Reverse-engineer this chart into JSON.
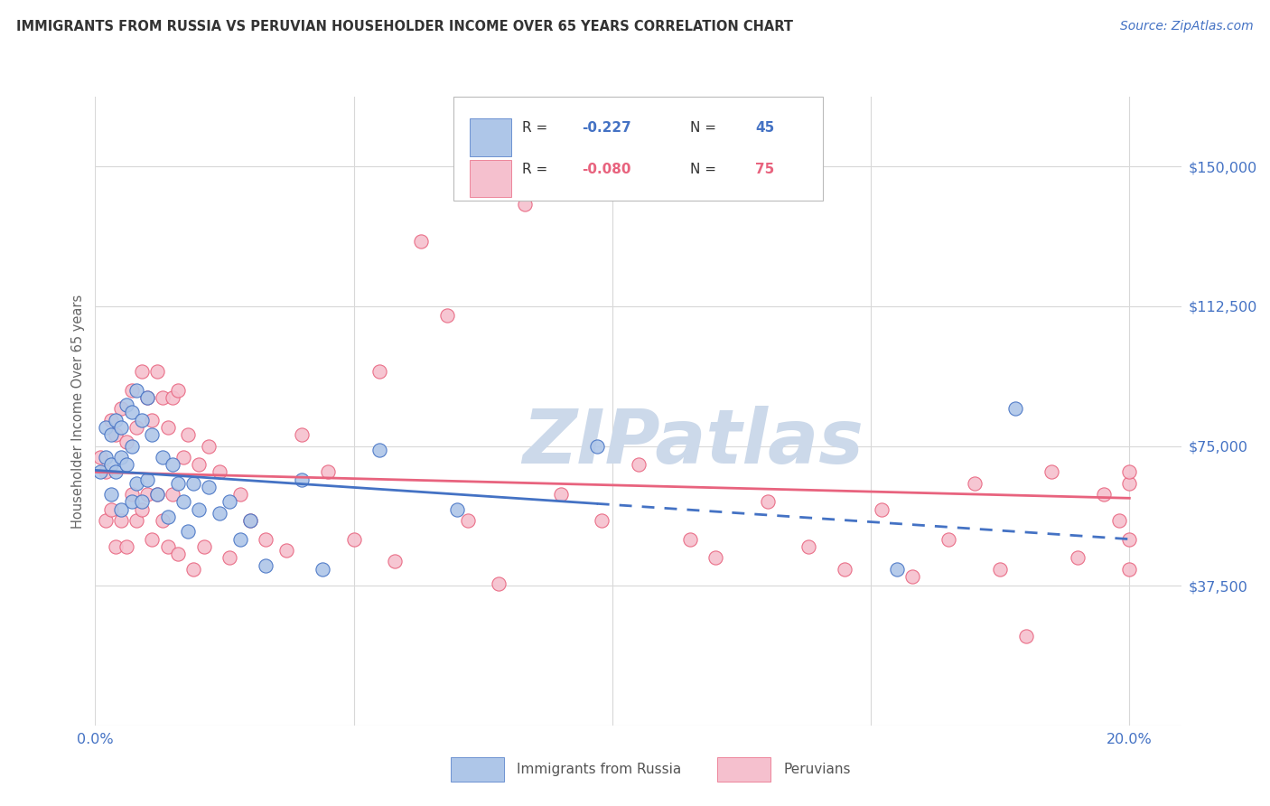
{
  "title": "IMMIGRANTS FROM RUSSIA VS PERUVIAN HOUSEHOLDER INCOME OVER 65 YEARS CORRELATION CHART",
  "source": "Source: ZipAtlas.com",
  "ylabel": "Householder Income Over 65 years",
  "xlim": [
    0.0,
    0.21
  ],
  "ylim": [
    0,
    168750
  ],
  "yticks": [
    0,
    37500,
    75000,
    112500,
    150000
  ],
  "ytick_labels": [
    "",
    "$37,500",
    "$75,000",
    "$112,500",
    "$150,000"
  ],
  "xticks": [
    0.0,
    0.05,
    0.1,
    0.15,
    0.2
  ],
  "xtick_labels": [
    "0.0%",
    "",
    "",
    "",
    "20.0%"
  ],
  "background_color": "#ffffff",
  "grid_color": "#d8d8d8",
  "title_color": "#333333",
  "source_color": "#4472c4",
  "axis_label_color": "#666666",
  "ytick_color": "#4472c4",
  "xtick_color": "#4472c4",
  "russia_color": "#aec6e8",
  "russia_edge_color": "#4472c4",
  "peru_color": "#f5c0ce",
  "peru_edge_color": "#e8637e",
  "russia_R": "-0.227",
  "russia_N": "45",
  "peru_R": "-0.080",
  "peru_N": "75",
  "legend_text_color": "#333333",
  "legend_val_color_russia": "#4472c4",
  "legend_val_color_peru": "#e8637e",
  "russia_trend_x0": 0.0,
  "russia_trend_x1": 0.2,
  "russia_trend_y0": 68500,
  "russia_trend_y1": 50000,
  "russia_trend_dash_x": 0.097,
  "peru_trend_x0": 0.0,
  "peru_trend_x1": 0.2,
  "peru_trend_y0": 68000,
  "peru_trend_y1": 61000,
  "russia_scatter_x": [
    0.001,
    0.002,
    0.002,
    0.003,
    0.003,
    0.003,
    0.004,
    0.004,
    0.005,
    0.005,
    0.005,
    0.006,
    0.006,
    0.007,
    0.007,
    0.007,
    0.008,
    0.008,
    0.009,
    0.009,
    0.01,
    0.01,
    0.011,
    0.012,
    0.013,
    0.014,
    0.015,
    0.016,
    0.017,
    0.018,
    0.019,
    0.02,
    0.022,
    0.024,
    0.026,
    0.028,
    0.03,
    0.033,
    0.04,
    0.044,
    0.055,
    0.07,
    0.097,
    0.155,
    0.178
  ],
  "russia_scatter_y": [
    68000,
    80000,
    72000,
    78000,
    70000,
    62000,
    82000,
    68000,
    80000,
    72000,
    58000,
    86000,
    70000,
    84000,
    75000,
    60000,
    90000,
    65000,
    82000,
    60000,
    88000,
    66000,
    78000,
    62000,
    72000,
    56000,
    70000,
    65000,
    60000,
    52000,
    65000,
    58000,
    64000,
    57000,
    60000,
    50000,
    55000,
    43000,
    66000,
    42000,
    74000,
    58000,
    75000,
    42000,
    85000
  ],
  "peru_scatter_x": [
    0.001,
    0.002,
    0.002,
    0.003,
    0.003,
    0.004,
    0.004,
    0.005,
    0.005,
    0.006,
    0.006,
    0.007,
    0.007,
    0.008,
    0.008,
    0.009,
    0.009,
    0.01,
    0.01,
    0.011,
    0.011,
    0.012,
    0.012,
    0.013,
    0.013,
    0.014,
    0.014,
    0.015,
    0.015,
    0.016,
    0.016,
    0.017,
    0.018,
    0.019,
    0.02,
    0.021,
    0.022,
    0.024,
    0.026,
    0.028,
    0.03,
    0.033,
    0.037,
    0.04,
    0.045,
    0.05,
    0.055,
    0.058,
    0.063,
    0.068,
    0.072,
    0.078,
    0.083,
    0.09,
    0.098,
    0.105,
    0.115,
    0.12,
    0.13,
    0.138,
    0.145,
    0.152,
    0.158,
    0.165,
    0.17,
    0.175,
    0.18,
    0.185,
    0.19,
    0.195,
    0.198,
    0.2,
    0.2,
    0.2,
    0.2
  ],
  "peru_scatter_y": [
    72000,
    68000,
    55000,
    82000,
    58000,
    78000,
    48000,
    85000,
    55000,
    76000,
    48000,
    90000,
    62000,
    80000,
    55000,
    95000,
    58000,
    88000,
    62000,
    82000,
    50000,
    95000,
    62000,
    88000,
    55000,
    80000,
    48000,
    88000,
    62000,
    90000,
    46000,
    72000,
    78000,
    42000,
    70000,
    48000,
    75000,
    68000,
    45000,
    62000,
    55000,
    50000,
    47000,
    78000,
    68000,
    50000,
    95000,
    44000,
    130000,
    110000,
    55000,
    38000,
    140000,
    62000,
    55000,
    70000,
    50000,
    45000,
    60000,
    48000,
    42000,
    58000,
    40000,
    50000,
    65000,
    42000,
    24000,
    68000,
    45000,
    62000,
    55000,
    42000,
    50000,
    65000,
    68000
  ],
  "marker_size": 120,
  "watermark_text": "ZIPatlas",
  "watermark_color": "#ccd9ea",
  "watermark_fontsize": 60
}
